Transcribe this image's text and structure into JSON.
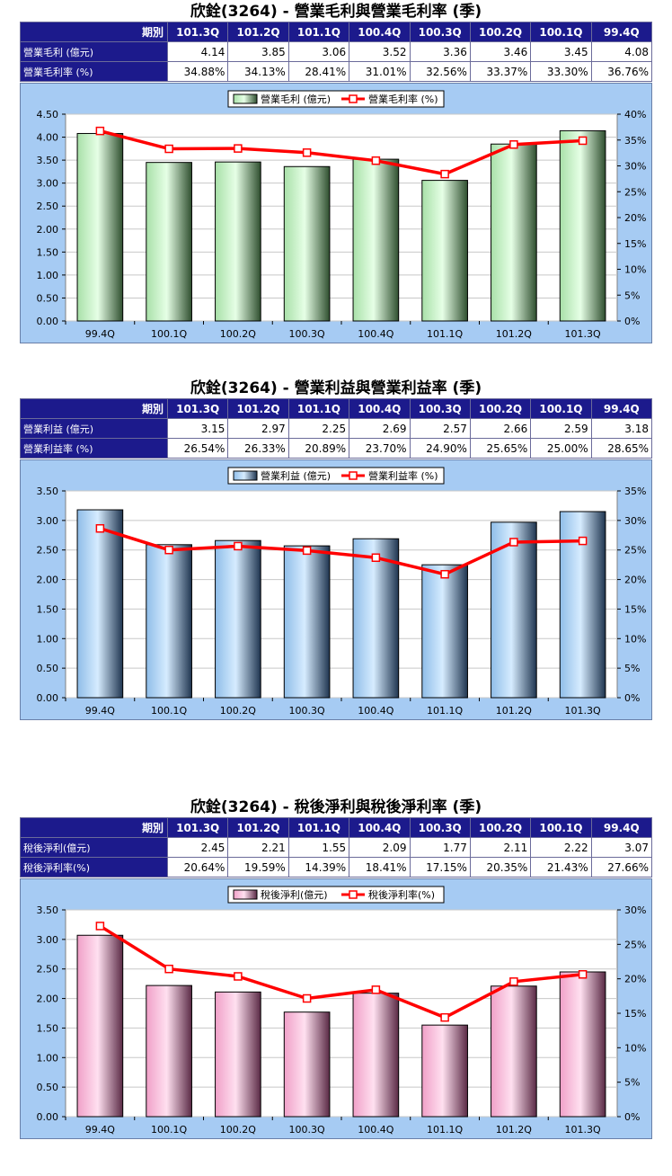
{
  "charts": [
    {
      "title": "欣銓(3264) - 營業毛利與營業毛利率 (季)",
      "table": {
        "corner": "期別",
        "periods": [
          "101.3Q",
          "101.2Q",
          "101.1Q",
          "100.4Q",
          "100.3Q",
          "100.2Q",
          "100.1Q",
          "99.4Q"
        ],
        "rows": [
          {
            "label": "營業毛利 (億元)",
            "values": [
              "4.14",
              "3.85",
              "3.06",
              "3.52",
              "3.36",
              "3.46",
              "3.45",
              "4.08"
            ]
          },
          {
            "label": "營業毛利率 (%)",
            "values": [
              "34.88%",
              "34.13%",
              "28.41%",
              "31.01%",
              "32.56%",
              "33.37%",
              "33.30%",
              "36.76%"
            ]
          }
        ]
      },
      "chart_data": {
        "type": "bar+line",
        "categories": [
          "99.4Q",
          "100.1Q",
          "100.2Q",
          "100.3Q",
          "100.4Q",
          "101.1Q",
          "101.2Q",
          "101.3Q"
        ],
        "series": [
          {
            "name": "營業毛利 (億元)",
            "type": "bar",
            "axis": "left",
            "values": [
              4.08,
              3.45,
              3.46,
              3.36,
              3.52,
              3.06,
              3.85,
              4.14
            ]
          },
          {
            "name": "營業毛利率 (%)",
            "type": "line",
            "axis": "right",
            "values": [
              36.76,
              33.3,
              33.37,
              32.56,
              31.01,
              28.41,
              34.13,
              34.88
            ]
          }
        ],
        "left_ticks": [
          "0.00",
          "0.50",
          "1.00",
          "1.50",
          "2.00",
          "2.50",
          "3.00",
          "3.50",
          "4.00",
          "4.50"
        ],
        "right_ticks": [
          "0%",
          "5%",
          "10%",
          "15%",
          "20%",
          "25%",
          "30%",
          "35%",
          "40%"
        ],
        "ylim": [
          0,
          4.5
        ],
        "y2lim": [
          0,
          40
        ],
        "grid": "horizontal",
        "legend": "top-center",
        "bar_color_light": "#e6ffe6",
        "bar_color_mid": "#a8e0a8",
        "bar_color_dark": "#2f4f2f"
      }
    },
    {
      "title": "欣銓(3264) - 營業利益與營業利益率 (季)",
      "table": {
        "corner": "期別",
        "periods": [
          "101.3Q",
          "101.2Q",
          "101.1Q",
          "100.4Q",
          "100.3Q",
          "100.2Q",
          "100.1Q",
          "99.4Q"
        ],
        "rows": [
          {
            "label": "營業利益 (億元)",
            "values": [
              "3.15",
              "2.97",
              "2.25",
              "2.69",
              "2.57",
              "2.66",
              "2.59",
              "3.18"
            ]
          },
          {
            "label": "營業利益率 (%)",
            "values": [
              "26.54%",
              "26.33%",
              "20.89%",
              "23.70%",
              "24.90%",
              "25.65%",
              "25.00%",
              "28.65%"
            ]
          }
        ]
      },
      "chart_data": {
        "type": "bar+line",
        "categories": [
          "99.4Q",
          "100.1Q",
          "100.2Q",
          "100.3Q",
          "100.4Q",
          "101.1Q",
          "101.2Q",
          "101.3Q"
        ],
        "series": [
          {
            "name": "營業利益 (億元)",
            "type": "bar",
            "axis": "left",
            "values": [
              3.18,
              2.59,
              2.66,
              2.57,
              2.69,
              2.25,
              2.97,
              3.15
            ]
          },
          {
            "name": "營業利益率 (%)",
            "type": "line",
            "axis": "right",
            "values": [
              28.65,
              25.0,
              25.65,
              24.9,
              23.7,
              20.89,
              26.33,
              26.54
            ]
          }
        ],
        "left_ticks": [
          "0.00",
          "0.50",
          "1.00",
          "1.50",
          "2.00",
          "2.50",
          "3.00",
          "3.50"
        ],
        "right_ticks": [
          "0%",
          "5%",
          "10%",
          "15%",
          "20%",
          "25%",
          "30%",
          "35%"
        ],
        "ylim": [
          0,
          3.5
        ],
        "y2lim": [
          0,
          35
        ],
        "grid": "horizontal",
        "legend": "top-center",
        "bar_color_light": "#d6ecff",
        "bar_color_mid": "#8fbde8",
        "bar_color_dark": "#1f3550"
      }
    },
    {
      "title": "欣銓(3264) - 稅後淨利與稅後淨利率 (季)",
      "table": {
        "corner": "期別",
        "periods": [
          "101.3Q",
          "101.2Q",
          "101.1Q",
          "100.4Q",
          "100.3Q",
          "100.2Q",
          "100.1Q",
          "99.4Q"
        ],
        "rows": [
          {
            "label": "稅後淨利(億元)",
            "values": [
              "2.45",
              "2.21",
              "1.55",
              "2.09",
              "1.77",
              "2.11",
              "2.22",
              "3.07"
            ]
          },
          {
            "label": "稅後淨利率(%)",
            "values": [
              "20.64%",
              "19.59%",
              "14.39%",
              "18.41%",
              "17.15%",
              "20.35%",
              "21.43%",
              "27.66%"
            ]
          }
        ]
      },
      "chart_data": {
        "type": "bar+line",
        "categories": [
          "99.4Q",
          "100.1Q",
          "100.2Q",
          "100.3Q",
          "100.4Q",
          "101.1Q",
          "101.2Q",
          "101.3Q"
        ],
        "series": [
          {
            "name": "稅後淨利(億元)",
            "type": "bar",
            "axis": "left",
            "values": [
              3.07,
              2.22,
              2.11,
              1.77,
              2.09,
              1.55,
              2.21,
              2.45
            ]
          },
          {
            "name": "稅後淨利率(%)",
            "type": "line",
            "axis": "right",
            "values": [
              27.66,
              21.43,
              20.35,
              17.15,
              18.41,
              14.39,
              19.59,
              20.64
            ]
          }
        ],
        "left_ticks": [
          "0.00",
          "0.50",
          "1.00",
          "1.50",
          "2.00",
          "2.50",
          "3.00",
          "3.50"
        ],
        "right_ticks": [
          "0%",
          "5%",
          "10%",
          "15%",
          "20%",
          "25%",
          "30%"
        ],
        "ylim": [
          0,
          3.5
        ],
        "y2lim": [
          0,
          30
        ],
        "grid": "horizontal",
        "legend": "top-center",
        "bar_color_light": "#ffe0f0",
        "bar_color_mid": "#f0a0c8",
        "bar_color_dark": "#5a2a45"
      }
    }
  ],
  "line_color": "#ff0000",
  "marker_fill": "#ffffff"
}
